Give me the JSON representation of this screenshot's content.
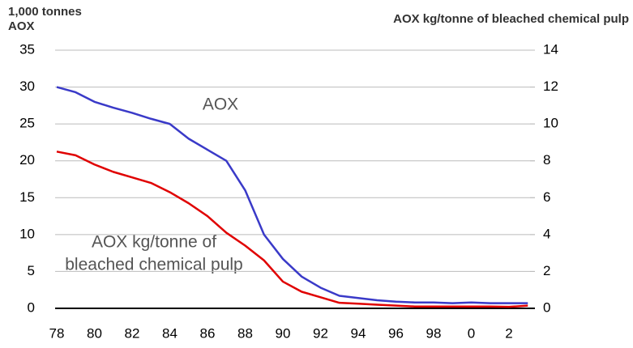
{
  "chart_data": {
    "type": "line",
    "y_label": [
      "1,000 tonnes",
      "AOX"
    ],
    "y2_label": "AOX kg/tonne of bleached chemical pulp",
    "categories": [
      "78",
      null,
      "80",
      null,
      "82",
      null,
      "84",
      null,
      "86",
      null,
      "88",
      null,
      "90",
      null,
      "92",
      null,
      "94",
      null,
      "96",
      null,
      "98",
      null,
      "0",
      null,
      "2",
      null
    ],
    "series": [
      {
        "name": "AOX",
        "color": "#3a3ac8",
        "axis": "y",
        "values": [
          30,
          29.3,
          28,
          27.2,
          26.5,
          25.7,
          25,
          23,
          21.5,
          20,
          16,
          10,
          6.7,
          4.3,
          2.8,
          1.7,
          1.4,
          1.1,
          0.9,
          0.8,
          0.8,
          0.7,
          0.8,
          0.7,
          0.7,
          0.7
        ]
      },
      {
        "name": [
          "AOX kg/tonne of",
          "bleached chemical pulp"
        ],
        "color": "#e00000",
        "axis": "y2",
        "values": [
          8.5,
          8.3,
          7.8,
          7.4,
          7.1,
          6.8,
          6.3,
          5.7,
          5.0,
          4.1,
          3.4,
          2.6,
          1.45,
          0.9,
          0.6,
          0.3,
          0.25,
          0.2,
          0.15,
          0.1,
          0.1,
          0.1,
          0.1,
          0.1,
          0.08,
          0.15
        ]
      }
    ],
    "ylim": [
      0,
      35
    ],
    "yticks": [
      0,
      5,
      10,
      15,
      20,
      25,
      30,
      35
    ],
    "y2lim": [
      0,
      14
    ],
    "y2ticks": [
      0,
      2,
      4,
      6,
      8,
      10,
      12,
      14
    ],
    "grid": true
  }
}
